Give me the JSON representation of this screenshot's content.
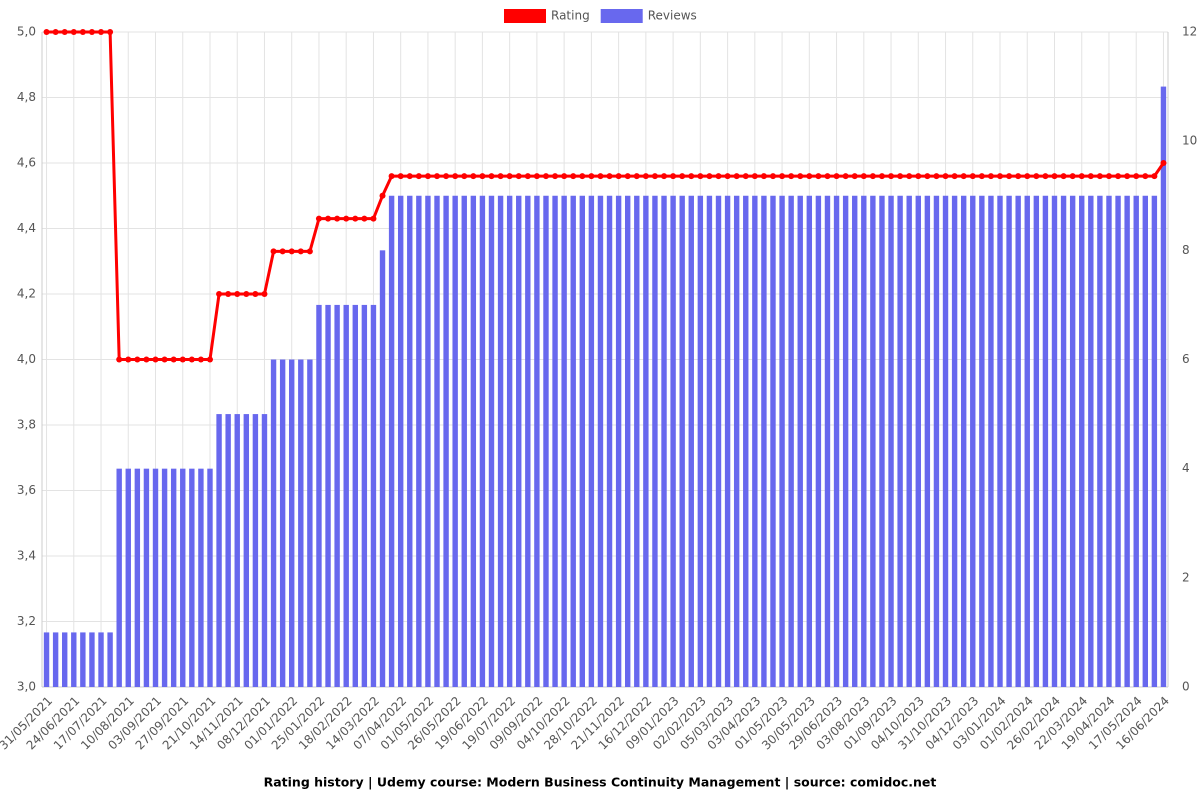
{
  "chart_data": {
    "type": "line-bar",
    "title": "Rating history | Udemy course: Modern Business Continuity Management | source: comidoc.net",
    "categories": [
      "31/05/2021",
      null,
      null,
      "24/06/2021",
      null,
      null,
      "17/07/2021",
      null,
      null,
      "10/08/2021",
      null,
      null,
      "03/09/2021",
      null,
      null,
      "27/09/2021",
      null,
      null,
      "21/10/2021",
      null,
      null,
      "14/11/2021",
      null,
      null,
      "08/12/2021",
      null,
      null,
      "01/01/2022",
      null,
      null,
      "25/01/2022",
      null,
      null,
      "18/02/2022",
      null,
      null,
      "14/03/2022",
      null,
      null,
      "07/04/2022",
      null,
      null,
      "01/05/2022",
      null,
      null,
      "26/05/2022",
      null,
      null,
      "19/06/2022",
      null,
      null,
      "19/07/2022",
      null,
      null,
      "09/09/2022",
      null,
      null,
      "04/10/2022",
      null,
      null,
      "28/10/2022",
      null,
      null,
      "21/11/2022",
      null,
      null,
      "16/12/2022",
      null,
      null,
      "09/01/2023",
      null,
      null,
      "02/02/2023",
      null,
      null,
      "05/03/2023",
      null,
      null,
      "03/04/2023",
      null,
      null,
      "01/05/2023",
      null,
      null,
      "30/05/2023",
      null,
      null,
      "29/06/2023",
      null,
      null,
      "03/08/2023",
      null,
      null,
      "01/09/2023",
      null,
      null,
      "04/10/2023",
      null,
      null,
      "31/10/2023",
      null,
      null,
      "04/12/2023",
      null,
      null,
      "03/01/2024",
      null,
      null,
      "01/02/2024",
      null,
      null,
      "26/02/2024",
      null,
      null,
      "22/03/2024",
      null,
      null,
      "19/04/2024",
      null,
      null,
      "17/05/2024",
      null,
      null,
      "16/06/2024"
    ],
    "series": [
      {
        "name": "Rating",
        "color": "#ff0000",
        "kind": "line",
        "values": [
          5,
          5,
          5,
          5,
          5,
          5,
          5,
          5,
          4,
          4,
          4,
          4,
          4,
          4,
          4,
          4,
          4,
          4,
          4,
          4.2,
          4.2,
          4.2,
          4.2,
          4.2,
          4.2,
          4.33,
          4.33,
          4.33,
          4.33,
          4.33,
          4.43,
          4.43,
          4.43,
          4.43,
          4.43,
          4.43,
          4.43,
          4.5,
          4.56,
          4.56,
          4.56,
          4.56,
          4.56,
          4.56,
          4.56,
          4.56,
          4.56,
          4.56,
          4.56,
          4.56,
          4.56,
          4.56,
          4.56,
          4.56,
          4.56,
          4.56,
          4.56,
          4.56,
          4.56,
          4.56,
          4.56,
          4.56,
          4.56,
          4.56,
          4.56,
          4.56,
          4.56,
          4.56,
          4.56,
          4.56,
          4.56,
          4.56,
          4.56,
          4.56,
          4.56,
          4.56,
          4.56,
          4.56,
          4.56,
          4.56,
          4.56,
          4.56,
          4.56,
          4.56,
          4.56,
          4.56,
          4.56,
          4.56,
          4.56,
          4.56,
          4.56,
          4.56,
          4.56,
          4.56,
          4.56,
          4.56,
          4.56,
          4.56,
          4.56,
          4.56,
          4.56,
          4.56,
          4.56,
          4.56,
          4.56,
          4.56,
          4.56,
          4.56,
          4.56,
          4.56,
          4.56,
          4.56,
          4.56,
          4.56,
          4.56,
          4.56,
          4.56,
          4.56,
          4.56,
          4.56,
          4.56,
          4.56,
          4.56,
          4.6
        ]
      },
      {
        "name": "Reviews",
        "color": "#6868ee",
        "kind": "bar",
        "axis": "y2",
        "values": [
          1,
          1,
          1,
          1,
          1,
          1,
          1,
          1,
          4,
          4,
          4,
          4,
          4,
          4,
          4,
          4,
          4,
          4,
          4,
          5,
          5,
          5,
          5,
          5,
          5,
          6,
          6,
          6,
          6,
          6,
          7,
          7,
          7,
          7,
          7,
          7,
          7,
          8,
          9,
          9,
          9,
          9,
          9,
          9,
          9,
          9,
          9,
          9,
          9,
          9,
          9,
          9,
          9,
          9,
          9,
          9,
          9,
          9,
          9,
          9,
          9,
          9,
          9,
          9,
          9,
          9,
          9,
          9,
          9,
          9,
          9,
          9,
          9,
          9,
          9,
          9,
          9,
          9,
          9,
          9,
          9,
          9,
          9,
          9,
          9,
          9,
          9,
          9,
          9,
          9,
          9,
          9,
          9,
          9,
          9,
          9,
          9,
          9,
          9,
          9,
          9,
          9,
          9,
          9,
          9,
          9,
          9,
          9,
          9,
          9,
          9,
          9,
          9,
          9,
          9,
          9,
          9,
          9,
          9,
          9,
          9,
          9,
          9,
          11
        ]
      }
    ],
    "ylim": [
      3,
      5
    ],
    "yticks": [
      {
        "value": 3,
        "label": "3,0"
      },
      {
        "value": 3.2,
        "label": "3,2"
      },
      {
        "value": 3.4,
        "label": "3,4"
      },
      {
        "value": 3.6,
        "label": "3,6"
      },
      {
        "value": 3.8,
        "label": "3,8"
      },
      {
        "value": 4,
        "label": "4,0"
      },
      {
        "value": 4.2,
        "label": "4,2"
      },
      {
        "value": 4.4,
        "label": "4,4"
      },
      {
        "value": 4.6,
        "label": "4,6"
      },
      {
        "value": 4.8,
        "label": "4,8"
      },
      {
        "value": 5,
        "label": "5,0"
      }
    ],
    "y2lim": [
      0,
      12
    ],
    "y2ticks": [
      0,
      2,
      4,
      6,
      8,
      10,
      12
    ],
    "grid": true
  }
}
